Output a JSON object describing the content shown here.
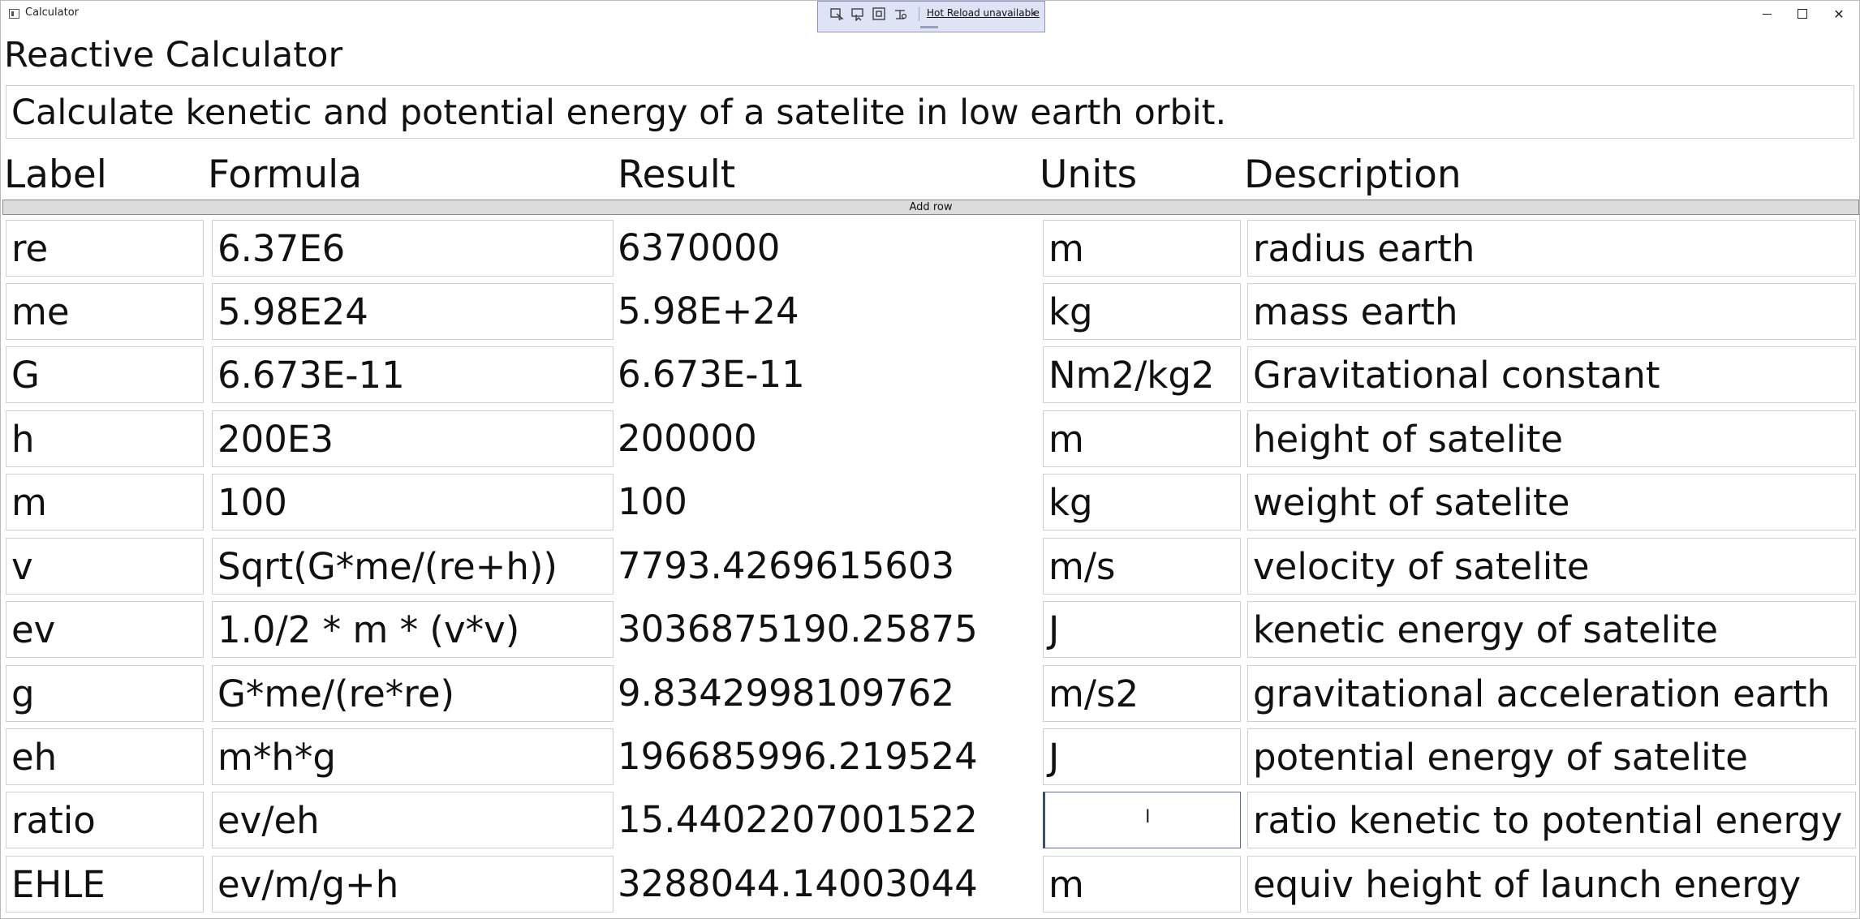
{
  "window": {
    "title": "Calculator"
  },
  "hot_reload": {
    "label": "Hot Reload unavailable"
  },
  "app": {
    "heading": "Reactive Calculator",
    "description": "Calculate kenetic and potential energy of a satelite in low earth orbit."
  },
  "columns": {
    "label": "Label",
    "formula": "Formula",
    "result": "Result",
    "units": "Units",
    "description": "Description"
  },
  "add_row_label": "Add row",
  "rows": [
    {
      "label": "re",
      "formula": "6.37E6",
      "result": "6370000",
      "units": "m",
      "description": "radius earth"
    },
    {
      "label": "me",
      "formula": "5.98E24",
      "result": "5.98E+24",
      "units": "kg",
      "description": "mass earth"
    },
    {
      "label": "G",
      "formula": "6.673E-11",
      "result": "6.673E-11",
      "units": "Nm2/kg2",
      "description": "Gravitational constant"
    },
    {
      "label": "h",
      "formula": "200E3",
      "result": "200000",
      "units": "m",
      "description": "height of satelite"
    },
    {
      "label": "m",
      "formula": "100",
      "result": "100",
      "units": "kg",
      "description": "weight of satelite"
    },
    {
      "label": "v",
      "formula": "Sqrt(G*me/(re+h))",
      "result": "7793.4269615603",
      "units": "m/s",
      "description": "velocity of satelite"
    },
    {
      "label": "ev",
      "formula": "1.0/2 * m * (v*v)",
      "result": "3036875190.25875",
      "units": "J",
      "description": "kenetic energy of satelite"
    },
    {
      "label": "g",
      "formula": "G*me/(re*re)",
      "result": "9.8342998109762",
      "units": "m/s2",
      "description": "gravitational acceleration earth"
    },
    {
      "label": "eh",
      "formula": "m*h*g",
      "result": "196685996.219524",
      "units": "J",
      "description": "potential energy of satelite"
    },
    {
      "label": "ratio",
      "formula": "ev/eh",
      "result": "15.4402207001522",
      "units": "",
      "description": "ratio kenetic to potential energy"
    },
    {
      "label": "EHLE",
      "formula": "ev/m/g+h",
      "result": "3288044.14003044",
      "units": "m",
      "description": "equiv height of launch energy"
    }
  ]
}
